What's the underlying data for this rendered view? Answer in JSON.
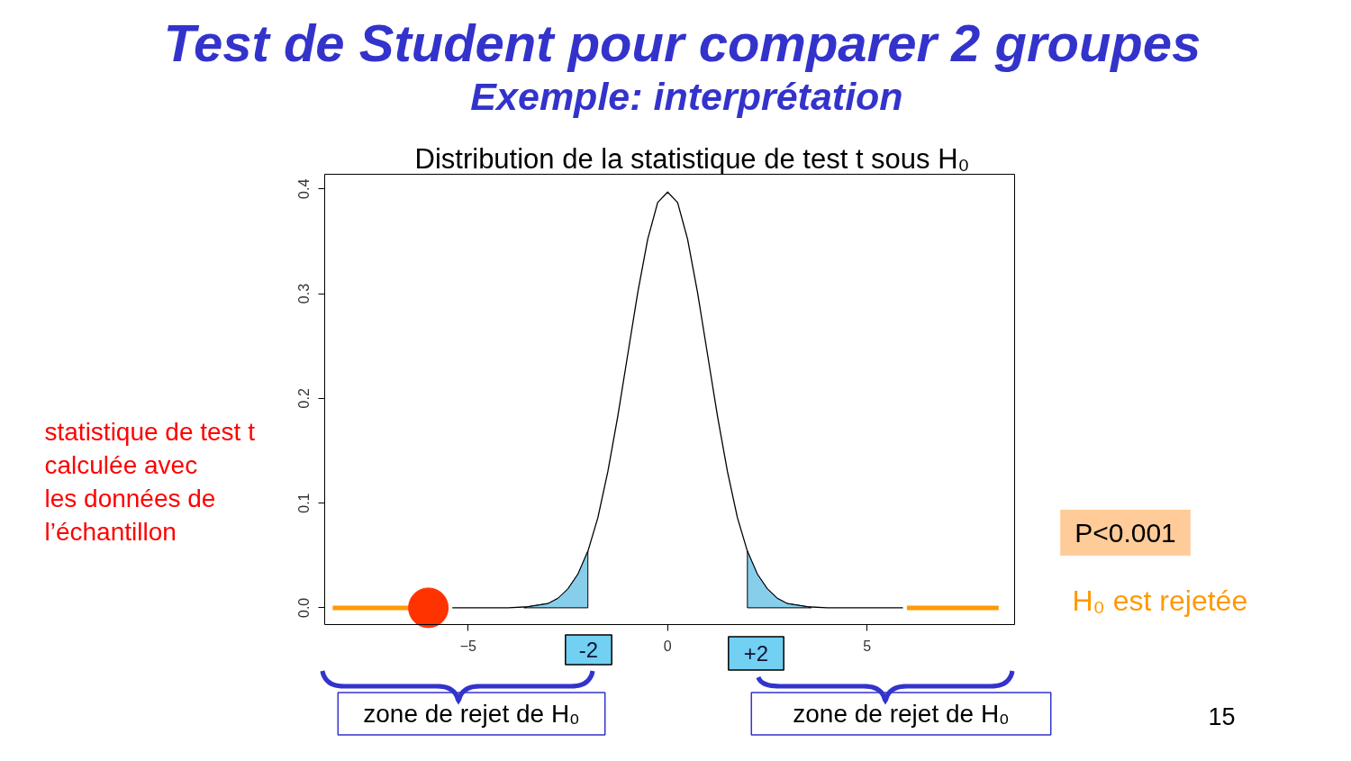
{
  "chart_data": {
    "type": "line",
    "title": "Test de Student pour comparer 2 groupes",
    "subtitle": "Exemple: interprétation",
    "xlim": [
      -8.6,
      8.7
    ],
    "ylim": [
      -0.016,
      0.414
    ],
    "xticks": [
      -5,
      0,
      5
    ],
    "yticks": [
      {
        "value": 0,
        "label": "0.0"
      },
      0.1,
      0.2,
      0.3,
      0.4
    ],
    "series": [
      {
        "color": "#000000",
        "x": [
          -5.4,
          -4.5,
          -4,
          -3.5,
          -3,
          -2.75,
          -2.5,
          -2.25,
          -2,
          -1.75,
          -1.5,
          -1.25,
          -1,
          -0.75,
          -0.5,
          -0.25,
          0,
          0.25,
          0.5,
          0.75,
          1,
          1.25,
          1.5,
          1.75,
          2,
          2.25,
          2.5,
          2.75,
          3,
          3.5,
          4,
          4.5,
          5.9
        ],
        "values": [
          0,
          0,
          0,
          0.001,
          0.004,
          0.009,
          0.018,
          0.032,
          0.054,
          0.086,
          0.13,
          0.183,
          0.242,
          0.301,
          0.352,
          0.387,
          0.397,
          0.387,
          0.352,
          0.301,
          0.242,
          0.183,
          0.13,
          0.086,
          0.054,
          0.032,
          0.018,
          0.009,
          0.004,
          0.001,
          0,
          0,
          0
        ]
      },
      {
        "type": "area",
        "color": "#87ceeb",
        "x": [
          -3.6,
          -3.5,
          -3,
          -2.75,
          -2.5,
          -2.25,
          -2
        ],
        "values": [
          0,
          0.001,
          0.004,
          0.009,
          0.018,
          0.032,
          0.054
        ]
      },
      {
        "type": "area",
        "color": "#87ceeb",
        "x": [
          2,
          2.25,
          2.5,
          2.75,
          3,
          3.5,
          3.6
        ],
        "values": [
          0.054,
          0.032,
          0.018,
          0.009,
          0.004,
          0.001,
          0
        ]
      },
      {
        "type": "line",
        "color": "#ff9900",
        "x": [
          -8.4,
          -6.5
        ],
        "values": [
          0,
          0
        ]
      },
      {
        "type": "line",
        "color": "#ff9900",
        "x": [
          6,
          8.3
        ],
        "values": [
          0,
          0
        ]
      },
      {
        "type": "scatter",
        "color": "#ff3300",
        "marker": "circle",
        "x": [
          -6
        ],
        "values": [
          0
        ]
      }
    ],
    "annotations": [
      "Distribution de la statistique de test t sous H₀",
      "statistique de test t\ncalculée avec\nles données de\nl’échantillon",
      "-2",
      "+2",
      "zone de rejet de H₀",
      "zone de rejet de H₀",
      "P<0.001",
      "H₀ est rejetée",
      "15"
    ]
  }
}
